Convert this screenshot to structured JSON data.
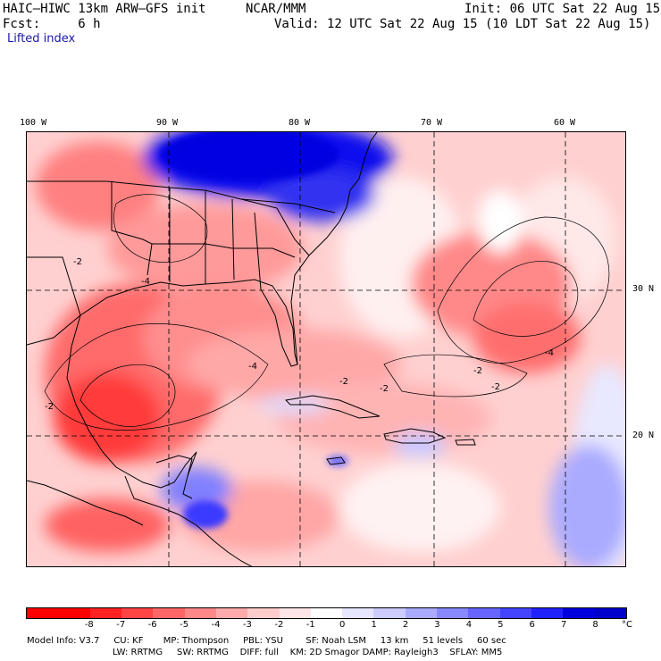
{
  "header": {
    "model_title": "HAIC–HIWC 13km ARW–GFS init",
    "org": "NCAR/MMM",
    "init_line": "Init: 06 UTC Sat 22 Aug 15",
    "fcst_line": "Fcst:     6 h",
    "valid_line": "Valid: 12 UTC Sat 22 Aug 15 (10 LDT Sat 22 Aug 15)",
    "field_name": "Lifted index"
  },
  "map": {
    "lon_labels": [
      "100 W",
      "90 W",
      "80 W",
      "70 W",
      "60 W"
    ],
    "lat_labels": [
      "30 N",
      "20 N"
    ],
    "contour_labels": [
      "-2",
      "-4",
      "-2",
      "-4",
      "-4",
      "-2",
      "-2",
      "-2",
      "-2"
    ]
  },
  "colorbar": {
    "tick_labels": [
      "-8",
      "-7",
      "-6",
      "-5",
      "-4",
      "-3",
      "-2",
      "-1",
      "0",
      "1",
      "2",
      "3",
      "4",
      "5",
      "6",
      "7",
      "8"
    ],
    "unit": "°C",
    "colors": [
      "#ff0000",
      "#ff2222",
      "#ff4444",
      "#ff6666",
      "#ff8888",
      "#ffaaaa",
      "#ffcccc",
      "#ffe6e6",
      "#ffffff",
      "#e6e6ff",
      "#ccccff",
      "#aaaaff",
      "#8888ff",
      "#6666ff",
      "#4444ff",
      "#2222ff",
      "#0000dd"
    ]
  },
  "model_info": {
    "line1": "Model Info: V3.7     CU: KF       MP: Thompson     PBL: YSU        SF: Noah LSM     13 km     51 levels     60 sec",
    "line2": "LW: RRTMG     SW: RRTMG    DIFF: full    KM: 2D Smagor DAMP: Rayleigh3    SFLAY: MM5"
  }
}
